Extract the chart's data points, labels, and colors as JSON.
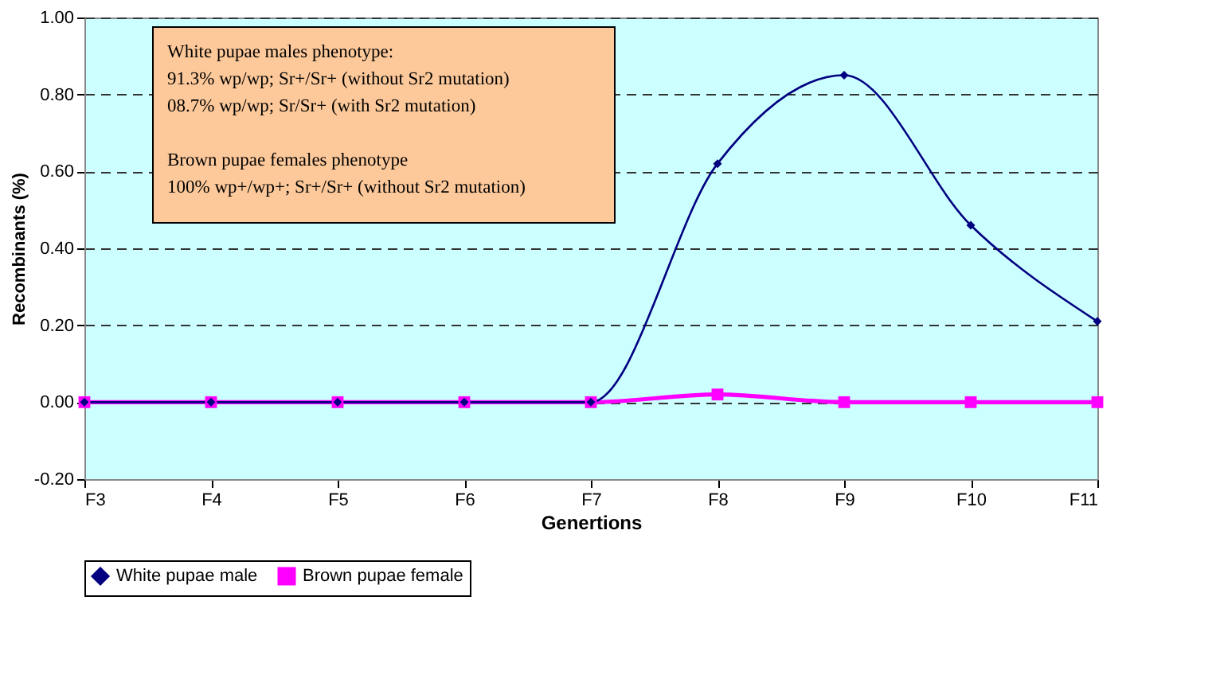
{
  "chart_data": {
    "type": "line",
    "xlabel": "Genertions",
    "ylabel": "Recombinants (%)",
    "categories": [
      "F3",
      "F4",
      "F5",
      "F6",
      "F7",
      "F8",
      "F9",
      "F10",
      "F11"
    ],
    "series": [
      {
        "name": "White pupae male",
        "color": "#000080",
        "marker": "diamond",
        "values": [
          0,
          0,
          0,
          0,
          0,
          0.62,
          0.85,
          0.46,
          0.21
        ]
      },
      {
        "name": "Brown pupae female",
        "color": "#ff00ff",
        "marker": "square",
        "values": [
          0,
          0,
          0,
          0,
          0,
          0.02,
          0,
          0,
          0
        ]
      }
    ],
    "ylim": [
      -0.2,
      1.0
    ],
    "yticks": [
      {
        "value": -0.2,
        "label": "-0.20"
      },
      {
        "value": 0,
        "label": "0.00"
      },
      {
        "value": 0.2,
        "label": "0.20"
      },
      {
        "value": 0.4,
        "label": "0.40"
      },
      {
        "value": 0.6,
        "label": "0.60"
      },
      {
        "value": 0.8,
        "label": "0.80"
      },
      {
        "value": 1.0,
        "label": "1.00"
      }
    ],
    "grid": "y",
    "legend": "bottom",
    "line_style": "solid",
    "annotations": [
      "White pupae males  phenotype:",
      "91.3%   wp/wp; Sr+/Sr+ (without  Sr2 mutation)",
      "08.7%   wp/wp; Sr/Sr+ (with Sr2 mutation)",
      "Brown pupae females phenotype",
      "100%   wp+/wp+; Sr+/Sr+ (without  Sr2 mutation)"
    ]
  }
}
